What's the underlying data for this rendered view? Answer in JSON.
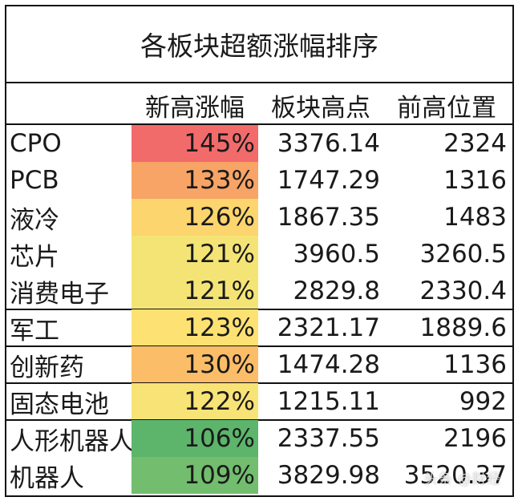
{
  "chart_data": {
    "type": "table",
    "title": "各板块超额涨幅排序",
    "columns": [
      "",
      "新高涨幅",
      "板块高点",
      "前高位置"
    ],
    "rows": [
      {
        "name": "CPO",
        "pct": "145%",
        "pct_value": 145,
        "high": "3376.14",
        "prev": "2324",
        "color": "#f26b6b"
      },
      {
        "name": "PCB",
        "pct": "133%",
        "pct_value": 133,
        "high": "1747.29",
        "prev": "1316",
        "color": "#f7a466"
      },
      {
        "name": "液冷",
        "pct": "126%",
        "pct_value": 126,
        "high": "1867.35",
        "prev": "1483",
        "color": "#fcd56e"
      },
      {
        "name": "芯片",
        "pct": "121%",
        "pct_value": 121,
        "high": "3960.5",
        "prev": "3260.5",
        "color": "#f4e476"
      },
      {
        "name": "消费电子",
        "pct": "121%",
        "pct_value": 121,
        "high": "2829.8",
        "prev": "2330.4",
        "color": "#f4e476"
      },
      {
        "name": "军工",
        "pct": "123%",
        "pct_value": 123,
        "high": "2321.17",
        "prev": "1889.6",
        "color": "#fde273"
      },
      {
        "name": "创新药",
        "pct": "130%",
        "pct_value": 130,
        "high": "1474.28",
        "prev": "1136",
        "color": "#fbbd68"
      },
      {
        "name": "固态电池",
        "pct": "122%",
        "pct_value": 122,
        "high": "1215.11",
        "prev": "992",
        "color": "#f8e376"
      },
      {
        "name": "人形机器人",
        "pct": "106%",
        "pct_value": 106,
        "high": "2337.55",
        "prev": "2196",
        "color": "#5cb56b"
      },
      {
        "name": "机器人",
        "pct": "109%",
        "pct_value": 109,
        "high": "3829.98",
        "prev": "3520.37",
        "color": "#72bd6e"
      }
    ],
    "group_breaks_after": [
      4,
      5,
      6,
      7
    ]
  },
  "watermark": "头条 @财经"
}
